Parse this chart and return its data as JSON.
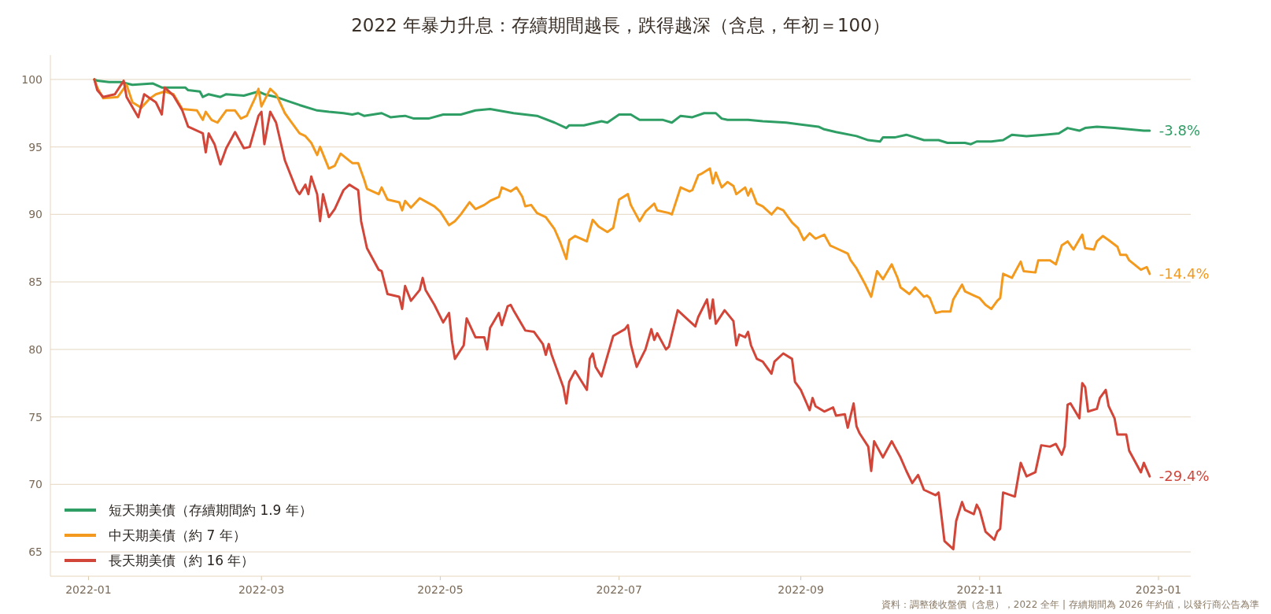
{
  "chart_data": {
    "type": "line",
    "title": "2022 年暴力升息：存續期間越長，跌得越深（含息，年初＝100）",
    "xlim": [
      "2021-12-19",
      "2023-01-12"
    ],
    "xticks": [
      {
        "value": "2022-01-01",
        "label": "2022-01"
      },
      {
        "value": "2022-03-01",
        "label": "2022-03"
      },
      {
        "value": "2022-05-01",
        "label": "2022-05"
      },
      {
        "value": "2022-07-01",
        "label": "2022-07"
      },
      {
        "value": "2022-09-01",
        "label": "2022-09"
      },
      {
        "value": "2022-11-01",
        "label": "2022-11"
      },
      {
        "value": "2023-01-01",
        "label": "2023-01"
      }
    ],
    "ylim": [
      63.2,
      101.8
    ],
    "yticks": [
      65,
      70,
      75,
      80,
      85,
      90,
      95,
      100
    ],
    "grid": "y",
    "legend": "bottom left",
    "marker": "none",
    "line_style": "solid",
    "series": [
      {
        "name": "短天期美債（存續期間約 1.9 年）",
        "color": "#2e9e64",
        "x": [
          "2022-01-03",
          "2022-01-04",
          "2022-01-08",
          "2022-01-12",
          "2022-01-16",
          "2022-01-23",
          "2022-01-26",
          "2022-02-03",
          "2022-02-04",
          "2022-02-08",
          "2022-02-09",
          "2022-02-11",
          "2022-02-15",
          "2022-02-17",
          "2022-02-23",
          "2022-02-28",
          "2022-03-02",
          "2022-03-06",
          "2022-03-10",
          "2022-03-14",
          "2022-03-20",
          "2022-03-24",
          "2022-03-29",
          "2022-04-01",
          "2022-04-03",
          "2022-04-05",
          "2022-04-11",
          "2022-04-14",
          "2022-04-19",
          "2022-04-22",
          "2022-04-27",
          "2022-05-02",
          "2022-05-08",
          "2022-05-13",
          "2022-05-18",
          "2022-05-26",
          "2022-06-03",
          "2022-06-09",
          "2022-06-13",
          "2022-06-14",
          "2022-06-19",
          "2022-06-25",
          "2022-06-27",
          "2022-07-01",
          "2022-07-05",
          "2022-07-08",
          "2022-07-16",
          "2022-07-19",
          "2022-07-22",
          "2022-07-26",
          "2022-07-30",
          "2022-08-03",
          "2022-08-05",
          "2022-08-07",
          "2022-08-14",
          "2022-08-19",
          "2022-08-27",
          "2022-09-07",
          "2022-09-09",
          "2022-09-13",
          "2022-09-20",
          "2022-09-24",
          "2022-09-28",
          "2022-09-29",
          "2022-10-03",
          "2022-10-07",
          "2022-10-13",
          "2022-10-18",
          "2022-10-21",
          "2022-10-27",
          "2022-10-29",
          "2022-10-31",
          "2022-11-05",
          "2022-11-09",
          "2022-11-12",
          "2022-11-17",
          "2022-11-23",
          "2022-11-28",
          "2022-12-01",
          "2022-12-05",
          "2022-12-07",
          "2022-12-11",
          "2022-12-17",
          "2022-12-22",
          "2022-12-27",
          "2022-12-29"
        ],
        "values": [
          100,
          99.9,
          99.8,
          99.8,
          99.6,
          99.7,
          99.4,
          99.4,
          99.2,
          99.1,
          98.7,
          98.9,
          98.7,
          98.9,
          98.8,
          99.1,
          98.9,
          98.7,
          98.4,
          98.1,
          97.7,
          97.6,
          97.5,
          97.4,
          97.5,
          97.3,
          97.5,
          97.2,
          97.3,
          97.1,
          97.1,
          97.4,
          97.4,
          97.7,
          97.8,
          97.5,
          97.3,
          96.8,
          96.4,
          96.6,
          96.6,
          96.9,
          96.8,
          97.4,
          97.4,
          97.0,
          97.0,
          96.8,
          97.3,
          97.2,
          97.5,
          97.5,
          97.1,
          97.0,
          97.0,
          96.9,
          96.8,
          96.5,
          96.3,
          96.1,
          95.8,
          95.5,
          95.4,
          95.7,
          95.7,
          95.9,
          95.5,
          95.5,
          95.3,
          95.3,
          95.2,
          95.4,
          95.4,
          95.5,
          95.9,
          95.8,
          95.9,
          96.0,
          96.4,
          96.2,
          96.4,
          96.5,
          96.4,
          96.3,
          96.2,
          96.2
        ]
      },
      {
        "name": "中天期美債（約 7 年）",
        "color": "#f39a1e",
        "x": [
          "2022-01-03",
          "2022-01-04",
          "2022-01-06",
          "2022-01-11",
          "2022-01-14",
          "2022-01-16",
          "2022-01-19",
          "2022-01-22",
          "2022-01-24",
          "2022-01-27",
          "2022-01-30",
          "2022-02-02",
          "2022-02-07",
          "2022-02-09",
          "2022-02-10",
          "2022-02-12",
          "2022-02-14",
          "2022-02-17",
          "2022-02-20",
          "2022-02-22",
          "2022-02-24",
          "2022-02-27",
          "2022-02-28",
          "2022-03-01",
          "2022-03-04",
          "2022-03-06",
          "2022-03-09",
          "2022-03-11",
          "2022-03-14",
          "2022-03-16",
          "2022-03-18",
          "2022-03-20",
          "2022-03-21",
          "2022-03-24",
          "2022-03-26",
          "2022-03-28",
          "2022-04-01",
          "2022-04-03",
          "2022-04-05",
          "2022-04-06",
          "2022-04-10",
          "2022-04-11",
          "2022-04-13",
          "2022-04-17",
          "2022-04-18",
          "2022-04-19",
          "2022-04-21",
          "2022-04-24",
          "2022-04-29",
          "2022-05-01",
          "2022-05-04",
          "2022-05-06",
          "2022-05-08",
          "2022-05-11",
          "2022-05-13",
          "2022-05-16",
          "2022-05-18",
          "2022-05-21",
          "2022-05-22",
          "2022-05-25",
          "2022-05-27",
          "2022-05-29",
          "2022-05-30",
          "2022-06-01",
          "2022-06-03",
          "2022-06-06",
          "2022-06-09",
          "2022-06-11",
          "2022-06-13",
          "2022-06-14",
          "2022-06-16",
          "2022-06-20",
          "2022-06-22",
          "2022-06-24",
          "2022-06-27",
          "2022-06-29",
          "2022-07-01",
          "2022-07-04",
          "2022-07-05",
          "2022-07-08",
          "2022-07-10",
          "2022-07-13",
          "2022-07-14",
          "2022-07-18",
          "2022-07-19",
          "2022-07-22",
          "2022-07-25",
          "2022-07-26",
          "2022-07-28",
          "2022-07-29",
          "2022-08-01",
          "2022-08-02",
          "2022-08-03",
          "2022-08-05",
          "2022-08-07",
          "2022-08-09",
          "2022-08-10",
          "2022-08-13",
          "2022-08-14",
          "2022-08-15",
          "2022-08-17",
          "2022-08-19",
          "2022-08-22",
          "2022-08-24",
          "2022-08-26",
          "2022-08-29",
          "2022-08-31",
          "2022-09-02",
          "2022-09-04",
          "2022-09-06",
          "2022-09-09",
          "2022-09-11",
          "2022-09-13",
          "2022-09-17",
          "2022-09-18",
          "2022-09-20",
          "2022-09-23",
          "2022-09-25",
          "2022-09-27",
          "2022-09-29",
          "2022-10-02",
          "2022-10-04",
          "2022-10-05",
          "2022-10-08",
          "2022-10-10",
          "2022-10-13",
          "2022-10-14",
          "2022-10-15",
          "2022-10-17",
          "2022-10-19",
          "2022-10-22",
          "2022-10-23",
          "2022-10-26",
          "2022-10-27",
          "2022-10-30",
          "2022-11-01",
          "2022-11-03",
          "2022-11-05",
          "2022-11-07",
          "2022-11-08",
          "2022-11-09",
          "2022-11-12",
          "2022-11-15",
          "2022-11-16",
          "2022-11-20",
          "2022-11-21",
          "2022-11-25",
          "2022-11-27",
          "2022-11-29",
          "2022-12-01",
          "2022-12-03",
          "2022-12-06",
          "2022-12-07",
          "2022-12-10",
          "2022-12-11",
          "2022-12-13",
          "2022-12-15",
          "2022-12-18",
          "2022-12-19",
          "2022-12-21",
          "2022-12-22",
          "2022-12-26",
          "2022-12-28",
          "2022-12-29"
        ],
        "values": [
          100,
          99.4,
          98.6,
          98.7,
          99.6,
          98.3,
          97.9,
          98.6,
          98.9,
          99.1,
          98.9,
          97.8,
          97.7,
          97.0,
          97.6,
          97.0,
          96.8,
          97.7,
          97.7,
          97.1,
          97.3,
          98.7,
          99.3,
          98.0,
          99.3,
          98.9,
          97.5,
          96.9,
          96.0,
          95.8,
          95.3,
          94.4,
          95.0,
          93.4,
          93.6,
          94.5,
          93.8,
          93.8,
          92.6,
          91.9,
          91.5,
          92.0,
          91.1,
          90.9,
          90.3,
          91.0,
          90.5,
          91.2,
          90.6,
          90.2,
          89.2,
          89.5,
          90.0,
          90.9,
          90.4,
          90.7,
          91.0,
          91.3,
          92.0,
          91.7,
          92.0,
          91.3,
          90.6,
          90.7,
          90.1,
          89.8,
          88.9,
          87.9,
          86.7,
          88.1,
          88.4,
          88.0,
          89.6,
          89.1,
          88.7,
          89.0,
          91.1,
          91.5,
          90.7,
          89.5,
          90.2,
          90.8,
          90.3,
          90.1,
          90.0,
          92.0,
          91.7,
          91.8,
          92.9,
          93.0,
          93.4,
          92.3,
          93.1,
          92.0,
          92.4,
          92.1,
          91.5,
          92.0,
          91.4,
          91.9,
          90.8,
          90.6,
          90.0,
          90.5,
          90.3,
          89.4,
          89.0,
          88.1,
          88.6,
          88.2,
          88.5,
          87.7,
          87.5,
          87.1,
          86.6,
          86.0,
          84.8,
          83.9,
          85.8,
          85.2,
          86.3,
          85.3,
          84.6,
          84.1,
          84.6,
          83.9,
          84.0,
          83.8,
          82.7,
          82.8,
          82.8,
          83.7,
          84.8,
          84.3,
          84.0,
          83.8,
          83.3,
          83.0,
          83.6,
          83.8,
          85.6,
          85.3,
          86.5,
          85.8,
          85.7,
          86.6,
          86.6,
          86.3,
          87.7,
          88.0,
          87.4,
          88.5,
          87.5,
          87.4,
          88.0,
          88.4,
          88.1,
          87.6,
          87.0,
          87.0,
          86.6,
          85.9,
          86.1,
          85.6
        ]
      },
      {
        "name": "長天期美債（約 16 年）",
        "color": "#d2463a",
        "x": [
          "2022-01-03",
          "2022-01-04",
          "2022-01-06",
          "2022-01-10",
          "2022-01-13",
          "2022-01-14",
          "2022-01-18",
          "2022-01-20",
          "2022-01-24",
          "2022-01-26",
          "2022-01-27",
          "2022-01-30",
          "2022-02-02",
          "2022-02-04",
          "2022-02-09",
          "2022-02-10",
          "2022-02-11",
          "2022-02-13",
          "2022-02-15",
          "2022-02-17",
          "2022-02-20",
          "2022-02-23",
          "2022-02-25",
          "2022-02-28",
          "2022-03-01",
          "2022-03-02",
          "2022-03-04",
          "2022-03-06",
          "2022-03-09",
          "2022-03-13",
          "2022-03-14",
          "2022-03-16",
          "2022-03-17",
          "2022-03-18",
          "2022-03-20",
          "2022-03-21",
          "2022-03-22",
          "2022-03-24",
          "2022-03-26",
          "2022-03-29",
          "2022-03-31",
          "2022-04-03",
          "2022-04-04",
          "2022-04-06",
          "2022-04-10",
          "2022-04-11",
          "2022-04-13",
          "2022-04-17",
          "2022-04-18",
          "2022-04-19",
          "2022-04-21",
          "2022-04-24",
          "2022-04-25",
          "2022-04-26",
          "2022-04-29",
          "2022-05-02",
          "2022-05-04",
          "2022-05-05",
          "2022-05-06",
          "2022-05-09",
          "2022-05-10",
          "2022-05-13",
          "2022-05-16",
          "2022-05-17",
          "2022-05-18",
          "2022-05-21",
          "2022-05-22",
          "2022-05-24",
          "2022-05-25",
          "2022-05-26",
          "2022-05-30",
          "2022-06-02",
          "2022-06-05",
          "2022-06-06",
          "2022-06-07",
          "2022-06-08",
          "2022-06-12",
          "2022-06-13",
          "2022-06-14",
          "2022-06-16",
          "2022-06-20",
          "2022-06-21",
          "2022-06-22",
          "2022-06-23",
          "2022-06-25",
          "2022-06-27",
          "2022-06-29",
          "2022-07-03",
          "2022-07-04",
          "2022-07-05",
          "2022-07-07",
          "2022-07-10",
          "2022-07-12",
          "2022-07-13",
          "2022-07-14",
          "2022-07-17",
          "2022-07-18",
          "2022-07-21",
          "2022-07-25",
          "2022-07-27",
          "2022-07-28",
          "2022-07-31",
          "2022-08-01",
          "2022-08-02",
          "2022-08-03",
          "2022-08-06",
          "2022-08-09",
          "2022-08-10",
          "2022-08-11",
          "2022-08-13",
          "2022-08-14",
          "2022-08-15",
          "2022-08-17",
          "2022-08-19",
          "2022-08-22",
          "2022-08-23",
          "2022-08-26",
          "2022-08-29",
          "2022-08-30",
          "2022-09-01",
          "2022-09-03",
          "2022-09-04",
          "2022-09-05",
          "2022-09-06",
          "2022-09-09",
          "2022-09-12",
          "2022-09-13",
          "2022-09-16",
          "2022-09-17",
          "2022-09-19",
          "2022-09-20",
          "2022-09-21",
          "2022-09-24",
          "2022-09-25",
          "2022-09-26",
          "2022-09-27",
          "2022-09-29",
          "2022-10-02",
          "2022-10-03",
          "2022-10-05",
          "2022-10-07",
          "2022-10-09",
          "2022-10-11",
          "2022-10-13",
          "2022-10-17",
          "2022-10-18",
          "2022-10-20",
          "2022-10-23",
          "2022-10-24",
          "2022-10-26",
          "2022-10-27",
          "2022-10-30",
          "2022-10-31",
          "2022-11-01",
          "2022-11-03",
          "2022-11-06",
          "2022-11-07",
          "2022-11-08",
          "2022-11-09",
          "2022-11-13",
          "2022-11-15",
          "2022-11-17",
          "2022-11-20",
          "2022-11-22",
          "2022-11-25",
          "2022-11-27",
          "2022-11-29",
          "2022-11-30",
          "2022-12-01",
          "2022-12-02",
          "2022-12-05",
          "2022-12-06",
          "2022-12-07",
          "2022-12-08",
          "2022-12-11",
          "2022-12-12",
          "2022-12-14",
          "2022-12-15",
          "2022-12-17",
          "2022-12-18",
          "2022-12-21",
          "2022-12-22",
          "2022-12-26",
          "2022-12-27",
          "2022-12-29"
        ],
        "values": [
          100,
          99.2,
          98.7,
          98.9,
          99.9,
          98.7,
          97.2,
          98.9,
          98.3,
          97.4,
          99.4,
          98.8,
          97.7,
          96.5,
          96.0,
          94.6,
          96.0,
          95.2,
          93.7,
          94.9,
          96.1,
          94.9,
          95.0,
          97.3,
          97.6,
          95.2,
          97.6,
          96.8,
          94.0,
          91.8,
          91.5,
          92.2,
          91.5,
          92.8,
          91.5,
          89.5,
          91.5,
          89.8,
          90.4,
          91.8,
          92.2,
          91.8,
          89.5,
          87.5,
          85.9,
          85.8,
          84.1,
          83.9,
          83.0,
          84.7,
          83.6,
          84.4,
          85.3,
          84.4,
          83.3,
          82.0,
          82.7,
          80.6,
          79.3,
          80.3,
          82.3,
          80.9,
          80.9,
          80.0,
          81.6,
          82.7,
          81.8,
          83.2,
          83.3,
          82.9,
          81.4,
          81.3,
          80.4,
          79.6,
          80.4,
          79.6,
          77.2,
          76.0,
          77.6,
          78.4,
          77.0,
          79.3,
          79.7,
          78.7,
          78.0,
          79.5,
          81.0,
          81.5,
          81.8,
          80.4,
          78.7,
          80.0,
          81.5,
          80.7,
          81.2,
          80.0,
          80.2,
          82.9,
          82.1,
          81.7,
          82.4,
          83.7,
          82.3,
          83.7,
          81.9,
          82.9,
          82.1,
          80.3,
          81.1,
          80.9,
          81.3,
          80.3,
          79.3,
          79.1,
          78.2,
          79.1,
          79.7,
          79.3,
          77.6,
          77.0,
          76.0,
          75.5,
          76.4,
          75.8,
          75.4,
          75.7,
          75.1,
          75.2,
          74.2,
          76.0,
          74.3,
          73.8,
          72.8,
          71.0,
          73.2,
          72.8,
          72.0,
          73.2,
          72.8,
          72.0,
          71.0,
          70.1,
          70.7,
          69.6,
          69.2,
          69.4,
          65.8,
          65.2,
          67.3,
          68.7,
          68.1,
          67.8,
          68.5,
          68.1,
          66.5,
          65.9,
          66.5,
          66.7,
          69.4,
          69.1,
          71.6,
          70.6,
          70.9,
          72.9,
          72.8,
          73.0,
          72.2,
          72.8,
          75.9,
          76.0,
          74.9,
          77.5,
          77.2,
          75.4,
          75.6,
          76.4,
          77.0,
          75.8,
          74.9,
          73.7,
          73.7,
          72.5,
          70.9,
          71.6,
          70.6
        ]
      }
    ],
    "annotations": [
      {
        "text": "-3.8%",
        "x": "2022-12-29",
        "y": 96.2
      },
      {
        "text": "-14.4%",
        "x": "2022-12-29",
        "y": 85.6
      },
      {
        "text": "-29.4%",
        "x": "2022-12-29",
        "y": 70.6
      },
      "資料：調整後收盤價（含息），2022 全年 | 存續期間為 2026 年約值，以發行商公告為準"
    ]
  }
}
